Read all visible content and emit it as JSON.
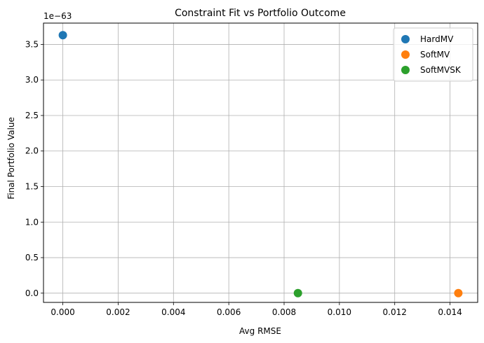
{
  "chart_data": {
    "type": "scatter",
    "title": "Constraint Fit vs Portfolio Outcome",
    "xlabel": "Avg RMSE",
    "ylabel": "Final Portfolio Value",
    "y_offset_label": "1e−63",
    "xlim": [
      -0.0007,
      0.015
    ],
    "ylim": [
      -0.13,
      3.8
    ],
    "x_ticks": [
      0.0,
      0.002,
      0.004,
      0.006,
      0.008,
      0.01,
      0.012,
      0.014
    ],
    "x_tick_labels": [
      "0.000",
      "0.002",
      "0.004",
      "0.006",
      "0.008",
      "0.010",
      "0.012",
      "0.014"
    ],
    "y_ticks": [
      0.0,
      0.5,
      1.0,
      1.5,
      2.0,
      2.5,
      3.0,
      3.5
    ],
    "y_tick_labels": [
      "0.0",
      "0.5",
      "1.0",
      "1.5",
      "2.0",
      "2.5",
      "3.0",
      "3.5"
    ],
    "grid": true,
    "legend_position": "top-right",
    "series": [
      {
        "name": "HardMV",
        "color": "#1f77b4",
        "x": [
          0.0
        ],
        "y": [
          3.63
        ]
      },
      {
        "name": "SoftMV",
        "color": "#ff7f0e",
        "x": [
          0.0143
        ],
        "y": [
          0.0
        ]
      },
      {
        "name": "SoftMVSK",
        "color": "#2ca02c",
        "x": [
          0.0085
        ],
        "y": [
          0.0
        ]
      }
    ]
  }
}
